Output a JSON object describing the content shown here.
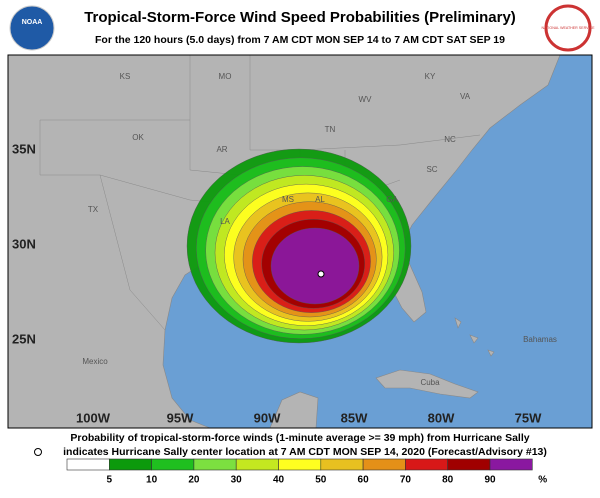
{
  "header": {
    "title": "Tropical-Storm-Force Wind Speed Probabilities (Preliminary)",
    "subtitle": "For the 120 hours (5.0 days) from 7 AM CDT MON SEP 14 to 7 AM CDT SAT SEP 19",
    "left_logo": "NOAA",
    "right_logo": "NATIONAL WEATHER SERVICE"
  },
  "map": {
    "lat_labels": [
      "35N",
      "30N",
      "25N"
    ],
    "lon_labels": [
      "100W",
      "95W",
      "90W",
      "85W",
      "80W",
      "75W"
    ],
    "places": [
      "KS",
      "MO",
      "KY",
      "WV",
      "VA",
      "OK",
      "AR",
      "TN",
      "NC",
      "SC",
      "TX",
      "MS",
      "AL",
      "GA",
      "LA",
      "Mexico",
      "Bahamas",
      "Cuba"
    ],
    "land_color": "#b4b4b4",
    "ocean_color": "#6a9fd4"
  },
  "caption": {
    "line1": "Probability of tropical-storm-force winds (1-minute average >= 39 mph) from Hurricane Sally",
    "line2": "indicates Hurricane Sally center location at 7 AM CDT MON SEP 14, 2020 (Forecast/Advisory #13)"
  },
  "legend": {
    "colors": [
      "#ffffff",
      "#0c9a0c",
      "#1fbf1f",
      "#7ce040",
      "#c4e820",
      "#ffff20",
      "#e8c020",
      "#e49018",
      "#d81818",
      "#a00000",
      "#8a18a0"
    ],
    "labels": [
      "5",
      "10",
      "20",
      "30",
      "40",
      "50",
      "60",
      "70",
      "80",
      "90"
    ],
    "unit": "%"
  }
}
